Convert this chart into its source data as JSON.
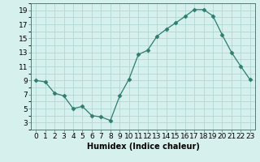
{
  "x": [
    0,
    1,
    2,
    3,
    4,
    5,
    6,
    7,
    8,
    9,
    10,
    11,
    12,
    13,
    14,
    15,
    16,
    17,
    18,
    19,
    20,
    21,
    22,
    23
  ],
  "y": [
    9,
    8.8,
    7.2,
    6.8,
    5.0,
    5.3,
    4.0,
    3.8,
    3.3,
    6.8,
    9.2,
    12.7,
    13.3,
    15.3,
    16.3,
    17.2,
    18.1,
    19.1,
    19.1,
    18.2,
    15.5,
    13.0,
    11.0,
    9.1
  ],
  "line_color": "#2e7d6e",
  "marker": "D",
  "marker_size": 2.5,
  "bg_color": "#d6f0ee",
  "grid_color": "#b0d8d4",
  "xlabel": "Humidex (Indice chaleur)",
  "xlim": [
    -0.5,
    23.5
  ],
  "ylim": [
    2,
    20
  ],
  "yticks": [
    3,
    5,
    7,
    9,
    11,
    13,
    15,
    17,
    19
  ],
  "xticks": [
    0,
    1,
    2,
    3,
    4,
    5,
    6,
    7,
    8,
    9,
    10,
    11,
    12,
    13,
    14,
    15,
    16,
    17,
    18,
    19,
    20,
    21,
    22,
    23
  ],
  "label_fontsize": 7,
  "tick_fontsize": 6.5
}
